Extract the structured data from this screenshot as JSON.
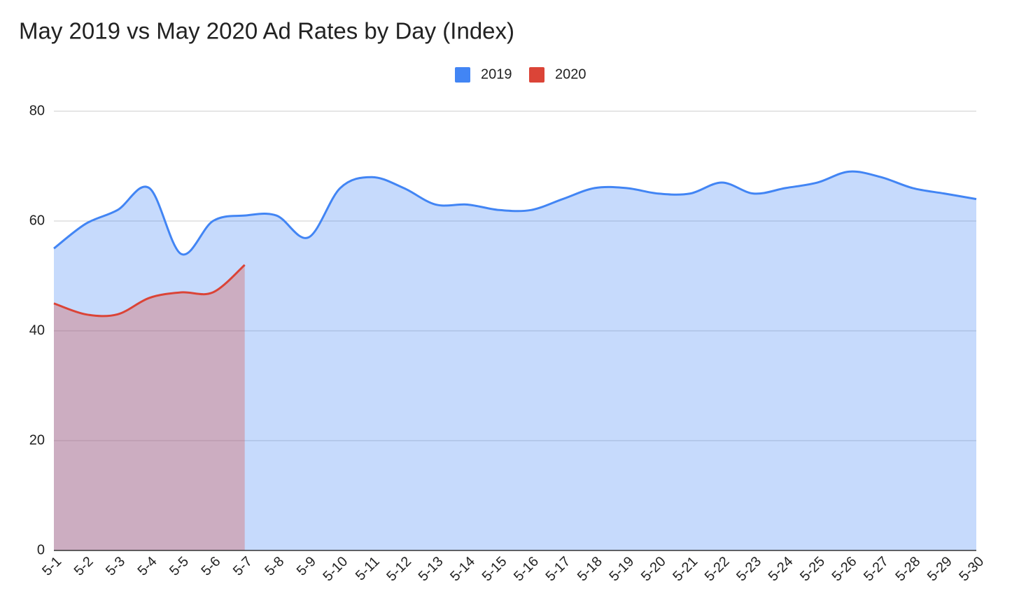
{
  "chart_data": {
    "type": "area",
    "title": "May 2019 vs May 2020 Ad Rates by Day (Index)",
    "categories": [
      "5-1",
      "5-2",
      "5-3",
      "5-4",
      "5-5",
      "5-6",
      "5-7",
      "5-8",
      "5-9",
      "5-10",
      "5-11",
      "5-12",
      "5-13",
      "5-14",
      "5-15",
      "5-16",
      "5-17",
      "5-18",
      "5-19",
      "5-20",
      "5-21",
      "5-22",
      "5-23",
      "5-24",
      "5-25",
      "5-26",
      "5-27",
      "5-28",
      "5-29",
      "5-30"
    ],
    "series": [
      {
        "name": "2019",
        "color": "#4285f4",
        "values": [
          55,
          59.5,
          62,
          66,
          54,
          60,
          61,
          61,
          57,
          66,
          68,
          66,
          63,
          63,
          62,
          62,
          64,
          66,
          66,
          65,
          65,
          67,
          65,
          66,
          67,
          69,
          68,
          66,
          65,
          64
        ]
      },
      {
        "name": "2020",
        "color": "#db4437",
        "values": [
          45,
          43,
          43,
          46,
          47,
          47,
          52,
          null,
          null,
          null,
          null,
          null,
          null,
          null,
          null,
          null,
          null,
          null,
          null,
          null,
          null,
          null,
          null,
          null,
          null,
          null,
          null,
          null,
          null,
          null
        ]
      }
    ],
    "ylim": [
      0,
      80
    ],
    "yticks": [
      0,
      20,
      40,
      60,
      80
    ],
    "grid": true,
    "smooth": true,
    "legend": "top"
  }
}
